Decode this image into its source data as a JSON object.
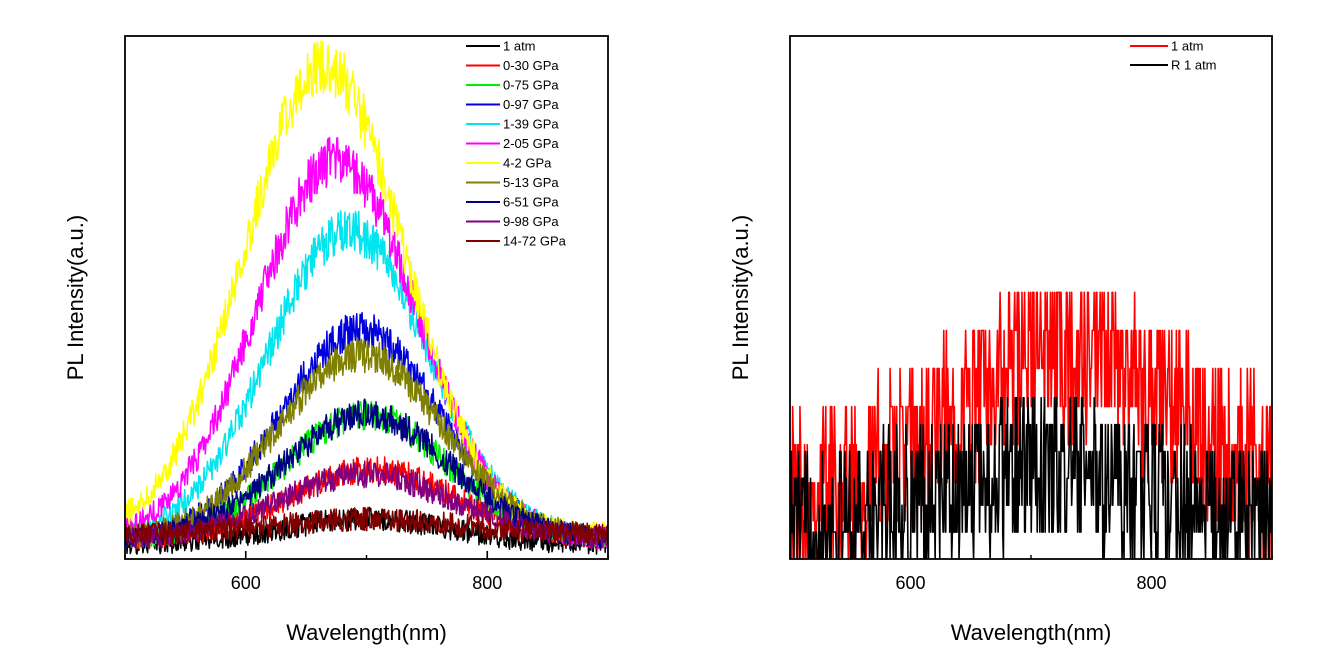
{
  "chart_data": [
    {
      "type": "line",
      "xlabel": "Wavelength(nm)",
      "ylabel": "PL Intensity(a.u.)",
      "xlim": [
        500,
        900
      ],
      "ylim": [
        0,
        1.05
      ],
      "xticks": [
        600,
        800
      ],
      "xtick_labels": [
        "600",
        "800"
      ],
      "y_tick_labels": false,
      "grid": false,
      "legend": "top-right",
      "noise": 0.035,
      "series": [
        {
          "name": "1 atm",
          "color": "#000000",
          "peak_x": 700,
          "width": 70,
          "amplitude": 0.05,
          "baseline": 0.03
        },
        {
          "name": "0-30 GPa",
          "color": "#ff0000",
          "peak_x": 705,
          "width": 68,
          "amplitude": 0.14,
          "baseline": 0.04
        },
        {
          "name": "0-75 GPa",
          "color": "#00ee00",
          "peak_x": 700,
          "width": 66,
          "amplitude": 0.25,
          "baseline": 0.04
        },
        {
          "name": "0-97 GPa",
          "color": "#0000dd",
          "peak_x": 695,
          "width": 65,
          "amplitude": 0.42,
          "baseline": 0.04
        },
        {
          "name": "1-39 GPa",
          "color": "#00e5ee",
          "peak_x": 685,
          "width": 66,
          "amplitude": 0.62,
          "baseline": 0.04
        },
        {
          "name": "2-05 GPa",
          "color": "#ff00ff",
          "peak_x": 675,
          "width": 66,
          "amplitude": 0.76,
          "baseline": 0.04
        },
        {
          "name": "4-2 GPa",
          "color": "#ffff00",
          "peak_x": 665,
          "width": 66,
          "amplitude": 0.94,
          "baseline": 0.05
        },
        {
          "name": "5-13 GPa",
          "color": "#808000",
          "peak_x": 695,
          "width": 68,
          "amplitude": 0.37,
          "baseline": 0.04
        },
        {
          "name": "6-51 GPa",
          "color": "#000080",
          "peak_x": 700,
          "width": 68,
          "amplitude": 0.25,
          "baseline": 0.04
        },
        {
          "name": "9-98 GPa",
          "color": "#800080",
          "peak_x": 700,
          "width": 70,
          "amplitude": 0.13,
          "baseline": 0.04
        },
        {
          "name": "14-72 GPa",
          "color": "#800000",
          "peak_x": 700,
          "width": 75,
          "amplitude": 0.03,
          "baseline": 0.05
        }
      ]
    },
    {
      "type": "line",
      "xlabel": "Wavelength(nm)",
      "ylabel": "PL Intensity(a.u.)",
      "xlim": [
        500,
        900
      ],
      "ylim": [
        0,
        1.0
      ],
      "xticks": [
        600,
        800
      ],
      "xtick_labels": [
        "600",
        "800"
      ],
      "y_tick_labels": false,
      "grid": false,
      "legend": "top-right",
      "quantized": true,
      "series": [
        {
          "name": "1 atm",
          "color": "#ff0000",
          "peak_x": 730,
          "width": 90,
          "amplitude": 0.27,
          "baseline": 0.12,
          "noise": 0.1,
          "max_y": 0.51
        },
        {
          "name": "R 1 atm",
          "color": "#000000",
          "peak_x": 710,
          "width": 80,
          "amplitude": 0.1,
          "baseline": 0.07,
          "noise": 0.09,
          "max_y": 0.36
        }
      ]
    }
  ]
}
